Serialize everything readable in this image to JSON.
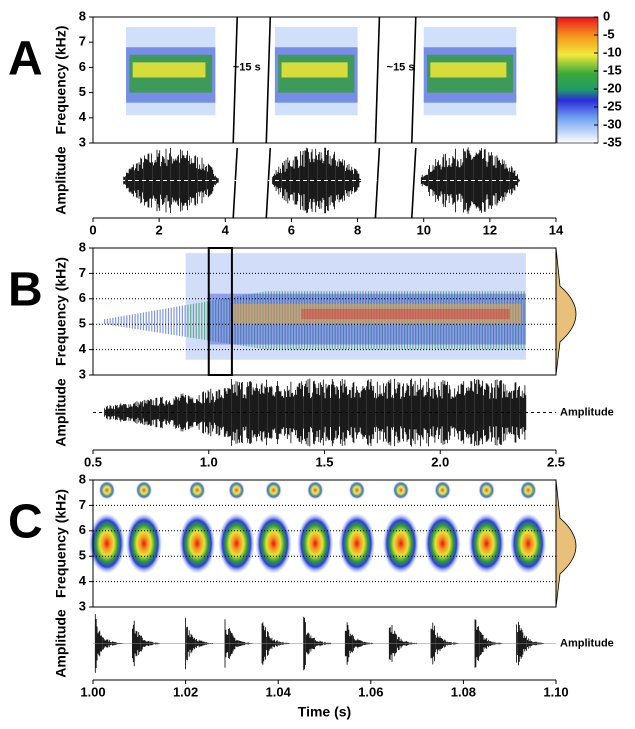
{
  "chart_data": [
    {
      "type": "spectrogram",
      "panel": "A",
      "ylabel": "Frequency (kHz)",
      "amplitude_label": "Amplitude",
      "xlim": [
        0,
        14
      ],
      "xticks": [
        0,
        2,
        4,
        6,
        8,
        10,
        12,
        14
      ],
      "ylim": [
        3,
        8
      ],
      "yticks": [
        3,
        4,
        5,
        6,
        7,
        8
      ],
      "grid": false,
      "annotations": [
        "~15 s",
        "~15 s"
      ],
      "colorbar": {
        "lim": [
          -35,
          0
        ],
        "ticks": [
          0,
          -5,
          -10,
          -15,
          -20,
          -25,
          -30,
          -35
        ]
      }
    },
    {
      "type": "spectrogram",
      "panel": "B",
      "ylabel": "Frequency (kHz)",
      "amplitude_label": "Amplitude",
      "side_label": "Amplitude",
      "xlim": [
        0.5,
        2.5
      ],
      "xticks": [
        0.5,
        {
          "value": 1,
          "label": "1.0"
        },
        1.5,
        {
          "value": 2,
          "label": "2.0"
        },
        2.5
      ],
      "ylim": [
        3,
        8
      ],
      "yticks": [
        3,
        4,
        5,
        6,
        7,
        8
      ],
      "grid": true,
      "highlight": [
        1.0,
        1.1
      ]
    },
    {
      "type": "spectrogram",
      "panel": "C",
      "ylabel": "Frequency (kHz)",
      "amplitude_label": "Amplitude",
      "side_label": "Amplitude",
      "xlabel": "Time (s)",
      "xlim": [
        1.0,
        1.1
      ],
      "xticks": [
        {
          "value": 1.0,
          "label": "1.00"
        },
        {
          "value": 1.02,
          "label": "1.02"
        },
        {
          "value": 1.04,
          "label": "1.04"
        },
        {
          "value": 1.06,
          "label": "1.06"
        },
        {
          "value": 1.08,
          "label": "1.08"
        },
        {
          "value": 1.1,
          "label": "1.10"
        }
      ],
      "ylim": [
        3,
        8
      ],
      "yticks": [
        3,
        4,
        5,
        6,
        7,
        8
      ],
      "grid": true
    }
  ]
}
